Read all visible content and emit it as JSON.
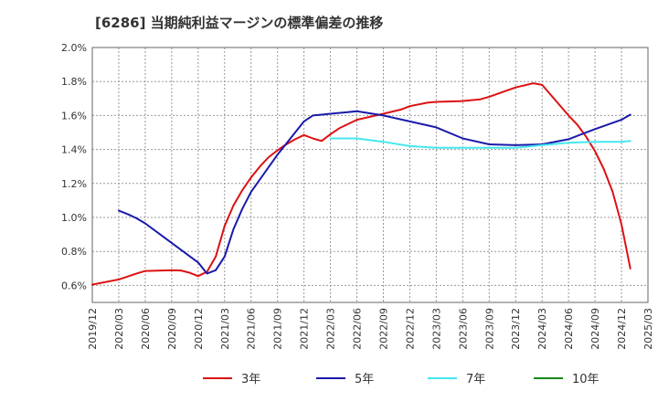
{
  "chart_data": {
    "type": "line",
    "title": "[6286]  当期純利益マージンの標準偏差の推移",
    "xlabel": "",
    "ylabel": "",
    "ylim": [
      0.5,
      2.0
    ],
    "y_ticks": [
      0.6,
      0.8,
      1.0,
      1.2,
      1.4,
      1.6,
      1.8,
      2.0
    ],
    "y_tick_labels": [
      "0.6%",
      "0.8%",
      "1.0%",
      "1.2%",
      "1.4%",
      "1.6%",
      "1.8%",
      "2.0%"
    ],
    "x_ticks": [
      "2019/12",
      "2020/03",
      "2020/06",
      "2020/09",
      "2020/12",
      "2021/03",
      "2021/06",
      "2021/09",
      "2021/12",
      "2022/03",
      "2022/06",
      "2022/09",
      "2022/12",
      "2023/03",
      "2023/06",
      "2023/09",
      "2023/12",
      "2024/03",
      "2024/06",
      "2024/09",
      "2024/12",
      "2025/03"
    ],
    "grid": true,
    "legend": "bottom",
    "series": [
      {
        "name": "3年",
        "color": "#dd1111",
        "points": [
          [
            "2019/12",
            0.605
          ],
          [
            "2020/03",
            0.635
          ],
          [
            "2020/05",
            0.67
          ],
          [
            "2020/06",
            0.685
          ],
          [
            "2020/09",
            0.69
          ],
          [
            "2020/10",
            0.688
          ],
          [
            "2020/11",
            0.675
          ],
          [
            "2020/12",
            0.655
          ],
          [
            "2021/01",
            0.68
          ],
          [
            "2021/02",
            0.77
          ],
          [
            "2021/03",
            0.95
          ],
          [
            "2021/04",
            1.07
          ],
          [
            "2021/05",
            1.16
          ],
          [
            "2021/06",
            1.235
          ],
          [
            "2021/07",
            1.3
          ],
          [
            "2021/08",
            1.355
          ],
          [
            "2021/09",
            1.395
          ],
          [
            "2021/10",
            1.43
          ],
          [
            "2021/11",
            1.46
          ],
          [
            "2021/12",
            1.485
          ],
          [
            "2022/01",
            1.465
          ],
          [
            "2022/02",
            1.45
          ],
          [
            "2022/03",
            1.49
          ],
          [
            "2022/04",
            1.525
          ],
          [
            "2022/06",
            1.575
          ],
          [
            "2022/09",
            1.61
          ],
          [
            "2022/11",
            1.635
          ],
          [
            "2022/12",
            1.655
          ],
          [
            "2023/02",
            1.675
          ],
          [
            "2023/03",
            1.68
          ],
          [
            "2023/06",
            1.685
          ],
          [
            "2023/08",
            1.695
          ],
          [
            "2023/09",
            1.71
          ],
          [
            "2023/12",
            1.765
          ],
          [
            "2024/02",
            1.79
          ],
          [
            "2024/03",
            1.78
          ],
          [
            "2024/06",
            1.6
          ],
          [
            "2024/07",
            1.545
          ],
          [
            "2024/08",
            1.475
          ],
          [
            "2024/09",
            1.39
          ],
          [
            "2024/10",
            1.285
          ],
          [
            "2024/11",
            1.15
          ],
          [
            "2024/12",
            0.96
          ],
          [
            "2025/01",
            0.7
          ]
        ]
      },
      {
        "name": "5年",
        "color": "#1a1aaa",
        "points": [
          [
            "2020/03",
            1.04
          ],
          [
            "2020/04",
            1.02
          ],
          [
            "2020/05",
            0.995
          ],
          [
            "2020/06",
            0.965
          ],
          [
            "2020/09",
            0.85
          ],
          [
            "2020/12",
            0.735
          ],
          [
            "2021/01",
            0.67
          ],
          [
            "2021/02",
            0.69
          ],
          [
            "2021/03",
            0.77
          ],
          [
            "2021/04",
            0.93
          ],
          [
            "2021/05",
            1.05
          ],
          [
            "2021/06",
            1.15
          ],
          [
            "2021/09",
            1.37
          ],
          [
            "2021/12",
            1.565
          ],
          [
            "2022/01",
            1.6
          ],
          [
            "2022/02",
            1.605
          ],
          [
            "2022/03",
            1.61
          ],
          [
            "2022/06",
            1.625
          ],
          [
            "2022/09",
            1.6
          ],
          [
            "2022/12",
            1.565
          ],
          [
            "2023/03",
            1.53
          ],
          [
            "2023/06",
            1.465
          ],
          [
            "2023/09",
            1.43
          ],
          [
            "2023/12",
            1.425
          ],
          [
            "2024/03",
            1.43
          ],
          [
            "2024/06",
            1.46
          ],
          [
            "2024/09",
            1.52
          ],
          [
            "2024/12",
            1.575
          ],
          [
            "2025/01",
            1.605
          ]
        ]
      },
      {
        "name": "7年",
        "color": "#44e8ee",
        "points": [
          [
            "2022/03",
            1.465
          ],
          [
            "2022/06",
            1.465
          ],
          [
            "2022/09",
            1.445
          ],
          [
            "2022/12",
            1.42
          ],
          [
            "2023/03",
            1.41
          ],
          [
            "2023/06",
            1.41
          ],
          [
            "2023/09",
            1.41
          ],
          [
            "2023/12",
            1.41
          ],
          [
            "2024/03",
            1.425
          ],
          [
            "2024/06",
            1.44
          ],
          [
            "2024/09",
            1.445
          ],
          [
            "2024/12",
            1.445
          ],
          [
            "2025/01",
            1.45
          ]
        ]
      },
      {
        "name": "10年",
        "color": "#1a8a1a",
        "points": []
      }
    ]
  }
}
